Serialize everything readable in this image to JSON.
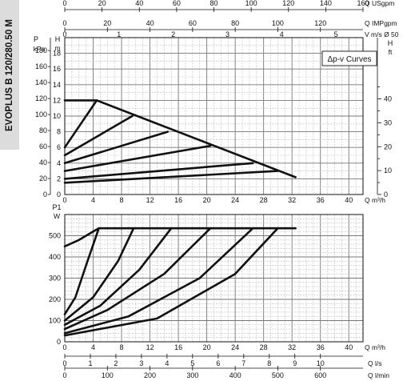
{
  "model_title": "EVOPLUS B 120/280.50 M",
  "legend_label": "Δp-v Curves",
  "chart_data": [
    {
      "type": "line",
      "title": "Δp-v Curves",
      "xlabel": "Q m³/h",
      "ylabel_left": "H m",
      "ylabel_left2": "P kPa",
      "ylabel_right": "H ft",
      "xlim": [
        0,
        42
      ],
      "ylim": [
        0,
        20
      ],
      "grid": true,
      "x_ticks": [
        0,
        4,
        8,
        12,
        16,
        20,
        24,
        28,
        32,
        36,
        40
      ],
      "y_ticks_m": [
        0,
        2,
        4,
        6,
        8,
        10,
        12,
        14,
        16,
        18
      ],
      "y_ticks_kpa": [
        0,
        20,
        40,
        60,
        80,
        100,
        120,
        140,
        160,
        180
      ],
      "y_ticks_ft": [
        0,
        10,
        20,
        30,
        40
      ],
      "top_axes": [
        {
          "label": "Q USgpm",
          "max": 160,
          "ticks": [
            0,
            20,
            40,
            60,
            80,
            100,
            120,
            140,
            160
          ]
        },
        {
          "label": "Q IMPgpm",
          "max": 140,
          "ticks": [
            0,
            20,
            40,
            60,
            80,
            100,
            120
          ]
        },
        {
          "label": "V m/s Ø 50",
          "max": 5.5,
          "ticks": [
            0,
            1,
            2,
            3,
            4,
            5
          ]
        }
      ],
      "series": [
        {
          "x": [
            0,
            4.5
          ],
          "y": [
            12,
            12
          ]
        },
        {
          "x": [
            0,
            4.5,
            32.5
          ],
          "y": [
            6,
            12,
            2.2
          ]
        },
        {
          "x": [
            0,
            9.5
          ],
          "y": [
            5,
            10
          ]
        },
        {
          "x": [
            0,
            14.5
          ],
          "y": [
            4,
            8
          ]
        },
        {
          "x": [
            0,
            20.5
          ],
          "y": [
            3,
            6.2
          ]
        },
        {
          "x": [
            0,
            26.5
          ],
          "y": [
            2,
            4
          ]
        },
        {
          "x": [
            0,
            30
          ],
          "y": [
            1.5,
            3
          ]
        }
      ]
    },
    {
      "type": "line",
      "xlabel": "Q m³/h",
      "ylabel": "P1 W",
      "xlim": [
        0,
        42
      ],
      "ylim": [
        0,
        600
      ],
      "grid": true,
      "x_ticks": [
        0,
        4,
        8,
        12,
        16,
        20,
        24,
        28,
        32,
        36,
        40
      ],
      "y_ticks": [
        0,
        100,
        200,
        300,
        400,
        500
      ],
      "bottom_axes": [
        {
          "label": "Q l/s",
          "max": 11.667,
          "ticks": [
            0,
            1,
            2,
            3,
            4,
            5,
            6,
            7,
            8,
            9,
            10
          ]
        },
        {
          "label": "Q l/min",
          "max": 700,
          "ticks": [
            0,
            100,
            200,
            300,
            400,
            500,
            600
          ]
        }
      ],
      "series": [
        {
          "x": [
            0,
            2,
            4,
            4.8,
            32.5
          ],
          "y": [
            450,
            480,
            520,
            535,
            535
          ]
        },
        {
          "x": [
            0,
            1.5,
            3,
            4.8
          ],
          "y": [
            130,
            210,
            360,
            535
          ]
        },
        {
          "x": [
            0,
            4,
            7.5,
            9.7
          ],
          "y": [
            100,
            210,
            380,
            535
          ]
        },
        {
          "x": [
            0,
            5,
            10.5,
            15
          ],
          "y": [
            80,
            170,
            340,
            535
          ]
        },
        {
          "x": [
            0,
            6,
            14,
            20.5
          ],
          "y": [
            60,
            150,
            320,
            535
          ]
        },
        {
          "x": [
            0,
            9,
            19,
            26.5
          ],
          "y": [
            40,
            120,
            300,
            535
          ]
        },
        {
          "x": [
            0,
            13,
            24,
            30
          ],
          "y": [
            30,
            110,
            320,
            535
          ]
        }
      ]
    }
  ]
}
